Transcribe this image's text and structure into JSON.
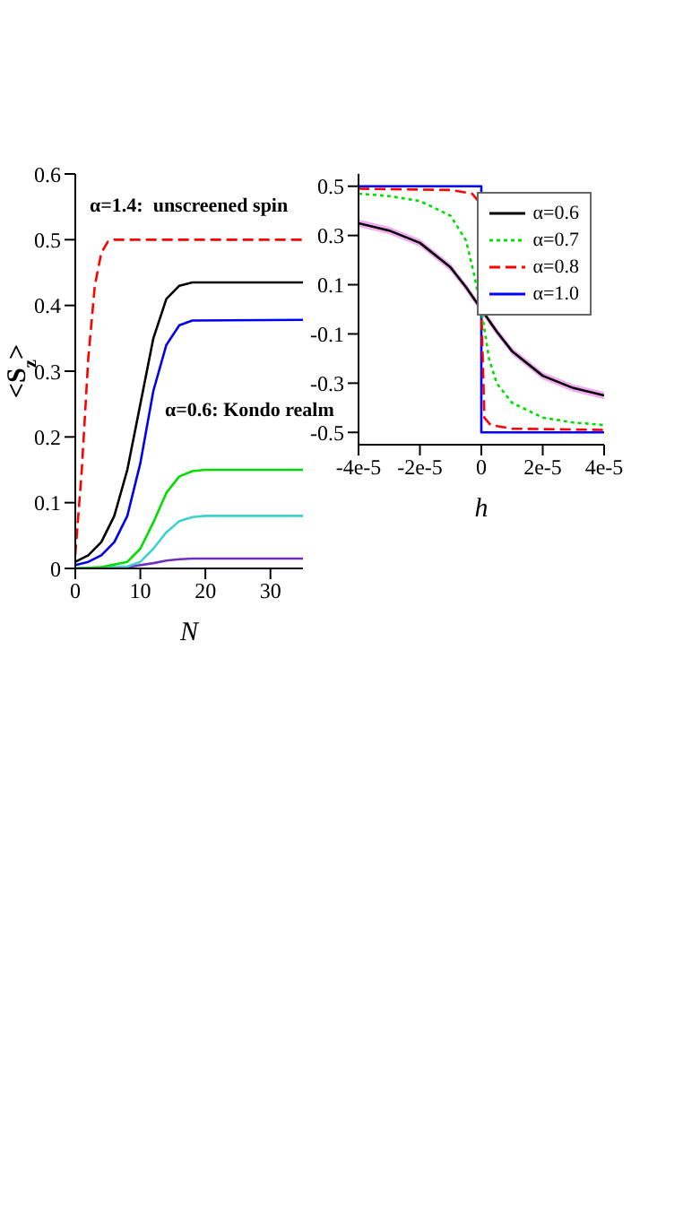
{
  "chart_data": [
    {
      "type": "line",
      "xlabel": "N",
      "ylabel": "<S$_{z}$>",
      "xlim": [
        0,
        35
      ],
      "ylim": [
        0,
        0.6
      ],
      "xticks": [
        0,
        10,
        20,
        30
      ],
      "yticks": [
        0,
        0.1,
        0.2,
        0.3,
        0.4,
        0.5,
        0.6
      ],
      "legend": false,
      "annotations": [
        "α=1.4:  unscreened spin",
        "α=0.6: Kondo realm"
      ],
      "series": [
        {
          "color": "#ff0000",
          "line_style": "dashed",
          "x": [
            0,
            1,
            2,
            3,
            4,
            5,
            6,
            35
          ],
          "values": [
            0.02,
            0.15,
            0.32,
            0.43,
            0.48,
            0.497,
            0.5,
            0.5
          ]
        },
        {
          "color": "#000000",
          "line_style": "solid",
          "x": [
            0,
            2,
            4,
            6,
            8,
            10,
            12,
            14,
            16,
            18,
            35
          ],
          "values": [
            0.01,
            0.02,
            0.04,
            0.08,
            0.15,
            0.25,
            0.35,
            0.41,
            0.43,
            0.435,
            0.435
          ]
        },
        {
          "color": "#0000ee",
          "line_style": "solid",
          "x": [
            0,
            2,
            4,
            6,
            8,
            10,
            12,
            14,
            16,
            18,
            35
          ],
          "values": [
            0.005,
            0.01,
            0.02,
            0.04,
            0.08,
            0.16,
            0.27,
            0.34,
            0.37,
            0.377,
            0.378
          ]
        },
        {
          "color": "#00dd00",
          "line_style": "solid",
          "x": [
            0,
            4,
            8,
            10,
            12,
            14,
            16,
            18,
            20,
            35
          ],
          "values": [
            0,
            0.002,
            0.01,
            0.03,
            0.07,
            0.115,
            0.14,
            0.148,
            0.15,
            0.15
          ]
        },
        {
          "color": "#40d0d0",
          "line_style": "solid",
          "x": [
            0,
            8,
            10,
            12,
            14,
            16,
            18,
            20,
            35
          ],
          "values": [
            0,
            0.003,
            0.01,
            0.03,
            0.055,
            0.072,
            0.078,
            0.08,
            0.08
          ]
        },
        {
          "color": "#7030c0",
          "line_style": "solid",
          "x": [
            0,
            8,
            12,
            14,
            16,
            18,
            35
          ],
          "values": [
            0,
            0.002,
            0.008,
            0.012,
            0.014,
            0.015,
            0.015
          ]
        }
      ]
    },
    {
      "type": "line",
      "xlabel": "h",
      "xlim": [
        -4e-05,
        4e-05
      ],
      "ylim": [
        -0.55,
        0.55
      ],
      "xticks": [
        {
          "value": -4e-05,
          "label": "-4e-5"
        },
        {
          "value": -2e-05,
          "label": "-2e-5"
        },
        {
          "value": 0,
          "label": "0"
        },
        {
          "value": 2e-05,
          "label": "2e-5"
        },
        {
          "value": 4e-05,
          "label": "4e-5"
        }
      ],
      "yticks": [
        0.5,
        0.3,
        0.1,
        -0.1,
        -0.3,
        -0.5
      ],
      "legend": "top right",
      "series": [
        {
          "name": "α=0.6",
          "color": "#000000",
          "line_style": "solid",
          "x": [
            -4e-05,
            -3e-05,
            -2e-05,
            -1e-05,
            -5e-06,
            0,
            5e-06,
            1e-05,
            2e-05,
            3e-05,
            4e-05
          ],
          "values": [
            0.35,
            0.32,
            0.27,
            0.17,
            0.09,
            0,
            -0.09,
            -0.17,
            -0.27,
            -0.32,
            -0.35
          ],
          "lower": [
            0.335,
            0.305,
            0.255,
            0.155,
            0.075,
            -0.015,
            -0.105,
            -0.185,
            -0.285,
            -0.335,
            -0.365
          ],
          "upper": [
            0.365,
            0.335,
            0.285,
            0.185,
            0.105,
            0.015,
            -0.075,
            -0.155,
            -0.255,
            -0.305,
            -0.335
          ]
        },
        {
          "name": "α=0.7",
          "color": "#00dd00",
          "line_style": "dotted",
          "x": [
            -4e-05,
            -3e-05,
            -2e-05,
            -1e-05,
            -5e-06,
            -2.5e-06,
            0,
            2.5e-06,
            5e-06,
            1e-05,
            2e-05,
            3e-05,
            4e-05
          ],
          "values": [
            0.47,
            0.46,
            0.44,
            0.38,
            0.28,
            0.15,
            0,
            -0.2,
            -0.3,
            -0.38,
            -0.44,
            -0.46,
            -0.47
          ]
        },
        {
          "name": "α=0.8",
          "color": "#ff0000",
          "line_style": "dashed",
          "x": [
            -4e-05,
            -1e-05,
            -3e-06,
            -1e-06,
            1e-06,
            3e-06,
            1e-05,
            4e-05
          ],
          "values": [
            0.49,
            0.485,
            0.47,
            0.44,
            -0.44,
            -0.47,
            -0.485,
            -0.49
          ]
        },
        {
          "name": "α=1.0",
          "color": "#0000ff",
          "line_style": "solid",
          "x": [
            -4e-05,
            0,
            0,
            4e-05
          ],
          "values": [
            0.5,
            0.5,
            -0.5,
            -0.5
          ]
        }
      ]
    }
  ]
}
